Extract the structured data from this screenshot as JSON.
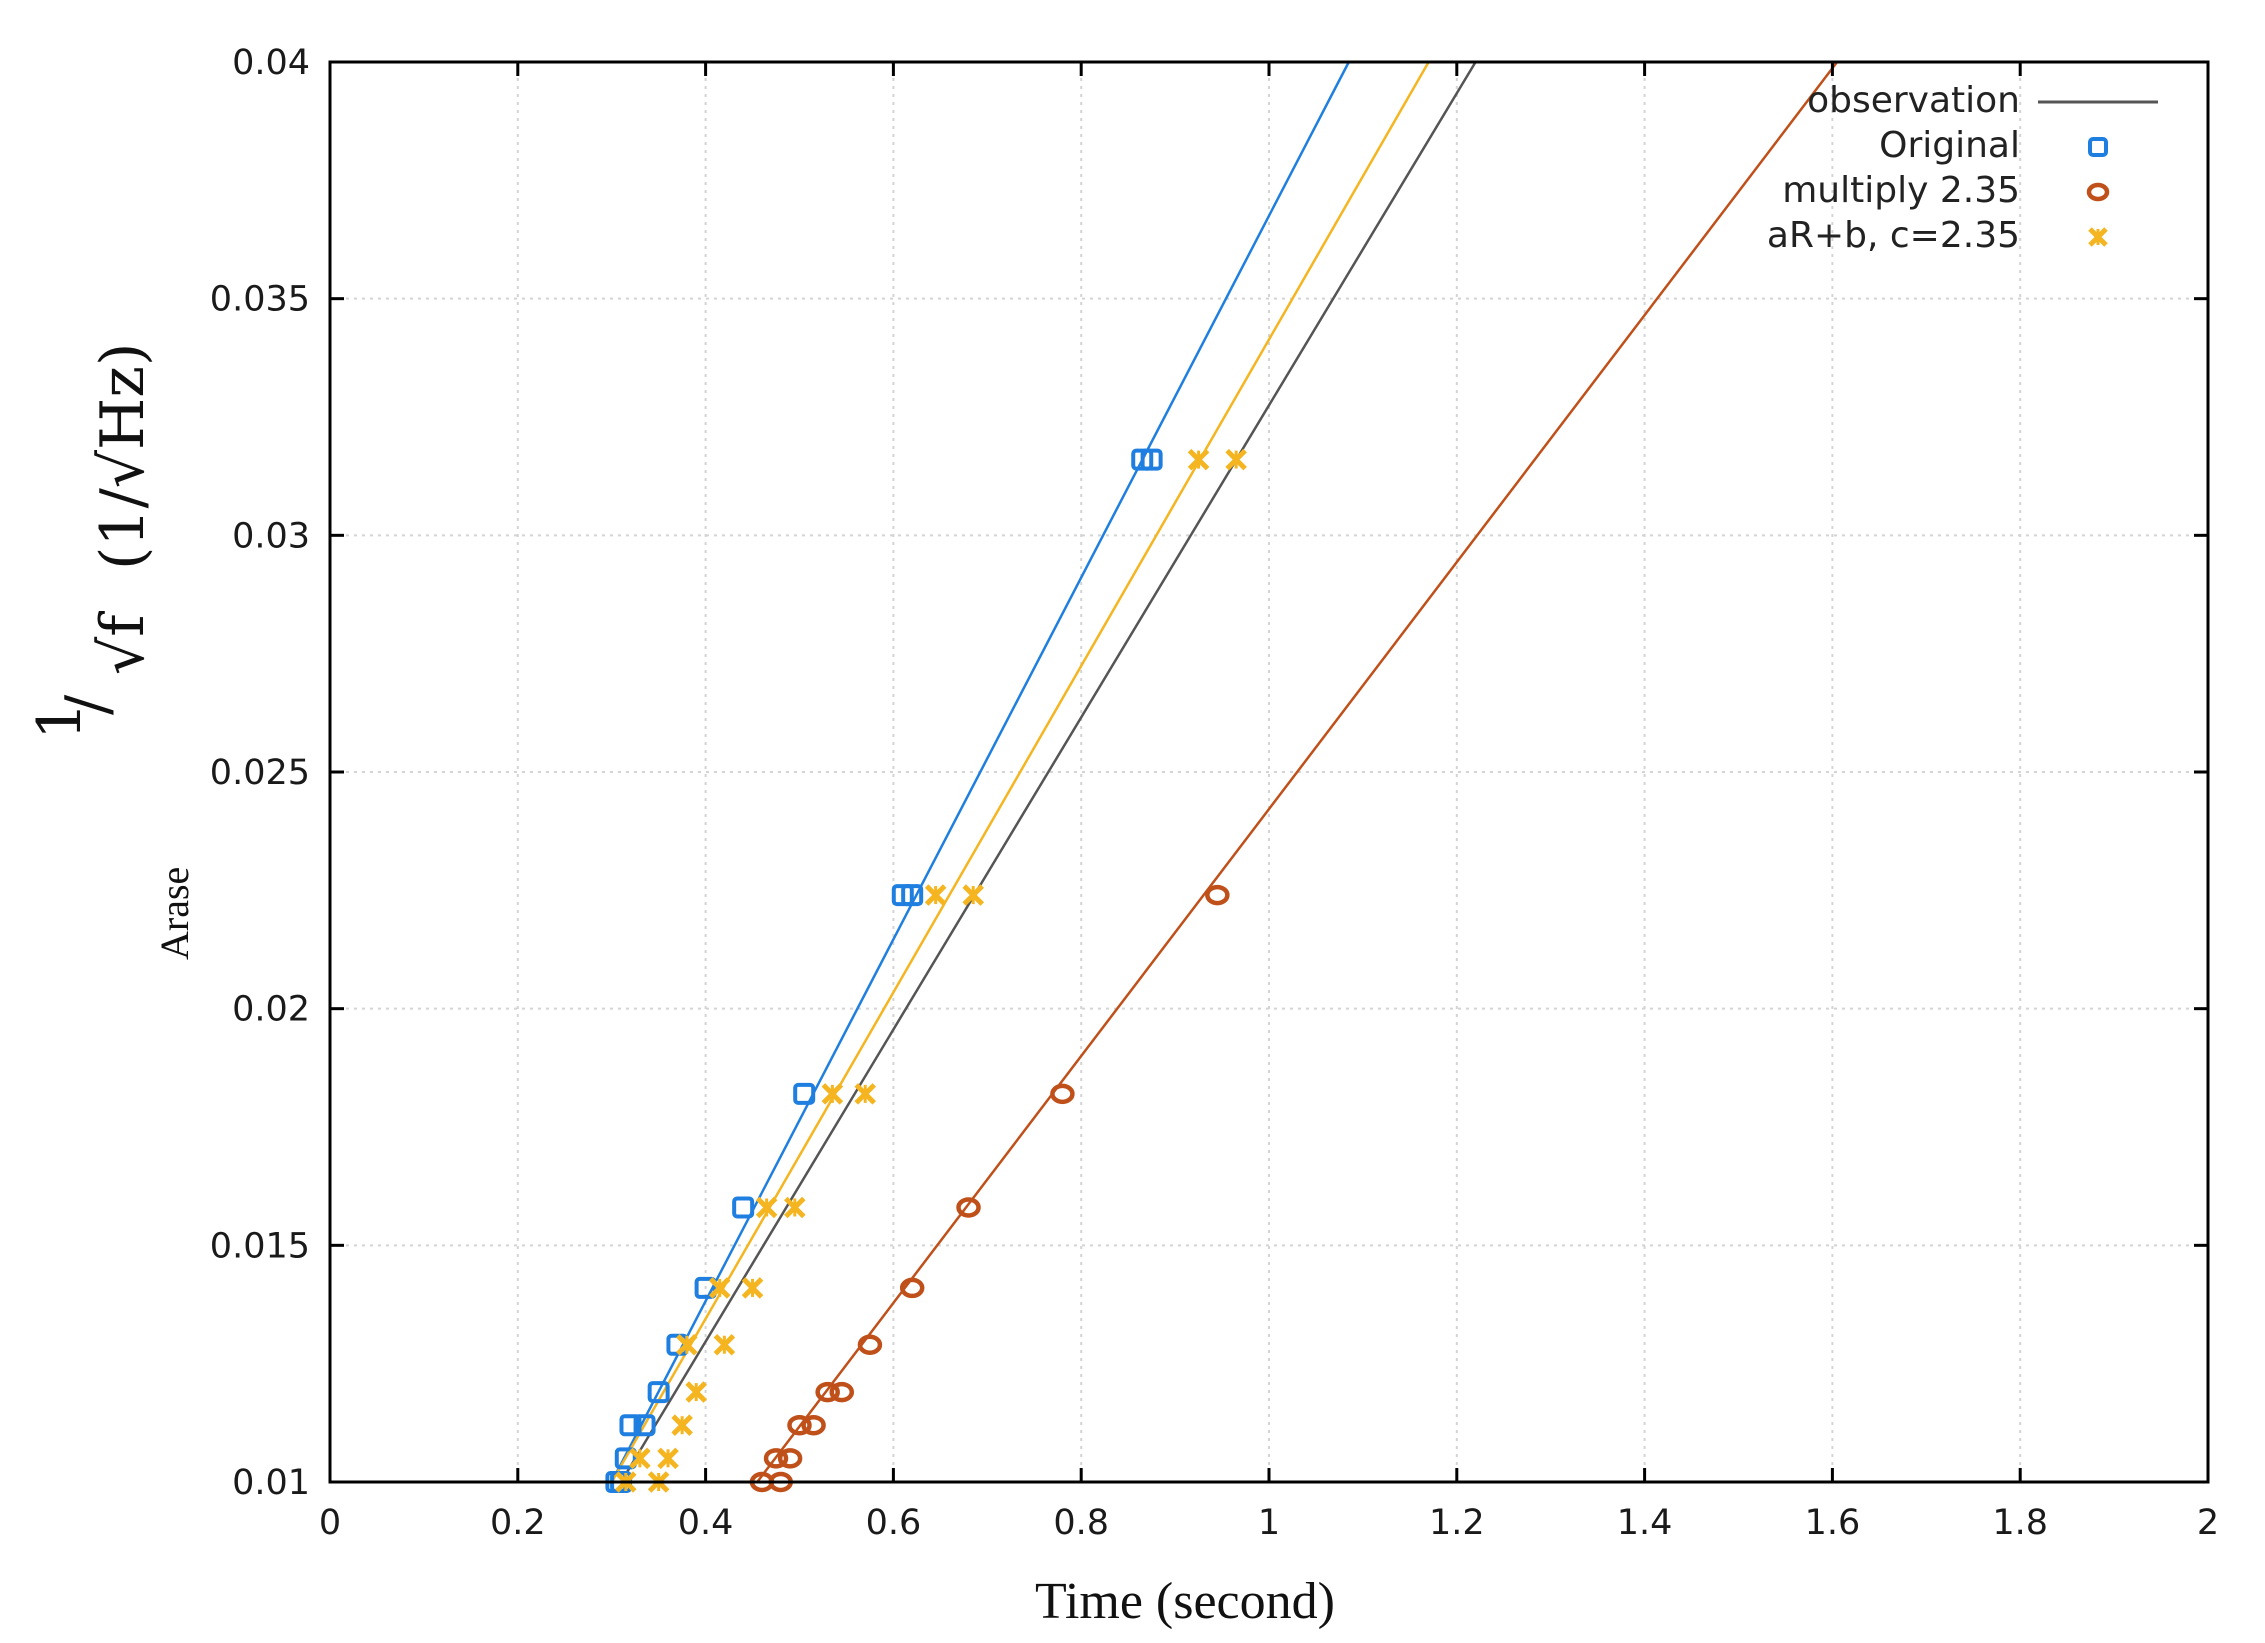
{
  "chart_data": {
    "type": "scatter",
    "title": "",
    "xlabel": "Time (second)",
    "ylabel": {
      "numerator": "1",
      "denominator": "√f",
      "unit": "(1/√Hz)",
      "subscript": "Arase"
    },
    "xlim": [
      0,
      2
    ],
    "ylim": [
      0.01,
      0.04
    ],
    "x_ticks": [
      "0",
      "0.2",
      "0.4",
      "0.6",
      "0.8",
      "1",
      "1.2",
      "1.4",
      "1.6",
      "1.8",
      "2"
    ],
    "y_ticks": [
      "0.01",
      "0.015",
      "0.02",
      "0.025",
      "0.03",
      "0.035",
      "0.04"
    ],
    "grid": true,
    "legend_position": "top-right",
    "series": [
      {
        "name": "observation",
        "kind": "line",
        "color": "#555555",
        "points": [
          [
            0.31,
            0.01
          ],
          [
            1.22,
            0.04
          ]
        ]
      },
      {
        "name": "Original",
        "kind": "markers",
        "marker": "square",
        "color": "#1f7fe0",
        "fit": [
          [
            0.3,
            0.01
          ],
          [
            1.085,
            0.04
          ]
        ],
        "points": [
          [
            0.305,
            0.01
          ],
          [
            0.31,
            0.01
          ],
          [
            0.315,
            0.0105
          ],
          [
            0.32,
            0.0112
          ],
          [
            0.335,
            0.0112
          ],
          [
            0.35,
            0.0119
          ],
          [
            0.37,
            0.0129
          ],
          [
            0.4,
            0.0141
          ],
          [
            0.44,
            0.0158
          ],
          [
            0.505,
            0.0182
          ],
          [
            0.61,
            0.0224
          ],
          [
            0.62,
            0.0224
          ],
          [
            0.865,
            0.0316
          ],
          [
            0.875,
            0.0316
          ]
        ]
      },
      {
        "name": "multiply 2.35",
        "kind": "markers",
        "marker": "circle",
        "color": "#c0501a",
        "fit": [
          [
            0.455,
            0.01
          ],
          [
            1.605,
            0.04
          ]
        ],
        "points": [
          [
            0.46,
            0.01
          ],
          [
            0.48,
            0.01
          ],
          [
            0.475,
            0.0105
          ],
          [
            0.49,
            0.0105
          ],
          [
            0.5,
            0.0112
          ],
          [
            0.515,
            0.0112
          ],
          [
            0.53,
            0.0119
          ],
          [
            0.545,
            0.0119
          ],
          [
            0.575,
            0.0129
          ],
          [
            0.62,
            0.0141
          ],
          [
            0.68,
            0.0158
          ],
          [
            0.78,
            0.0182
          ],
          [
            0.945,
            0.0224
          ]
        ]
      },
      {
        "name": "aR+b, c=2.35",
        "kind": "markers",
        "marker": "x",
        "color": "#f5b520",
        "fit": [
          [
            0.3,
            0.01
          ],
          [
            1.17,
            0.04
          ]
        ],
        "points": [
          [
            0.315,
            0.01
          ],
          [
            0.35,
            0.01
          ],
          [
            0.33,
            0.0105
          ],
          [
            0.36,
            0.0105
          ],
          [
            0.375,
            0.0112
          ],
          [
            0.39,
            0.0119
          ],
          [
            0.38,
            0.0129
          ],
          [
            0.42,
            0.0129
          ],
          [
            0.415,
            0.0141
          ],
          [
            0.45,
            0.0141
          ],
          [
            0.465,
            0.0158
          ],
          [
            0.495,
            0.0158
          ],
          [
            0.535,
            0.0182
          ],
          [
            0.57,
            0.0182
          ],
          [
            0.645,
            0.0224
          ],
          [
            0.685,
            0.0224
          ],
          [
            0.925,
            0.0316
          ],
          [
            0.965,
            0.0316
          ]
        ]
      }
    ]
  }
}
